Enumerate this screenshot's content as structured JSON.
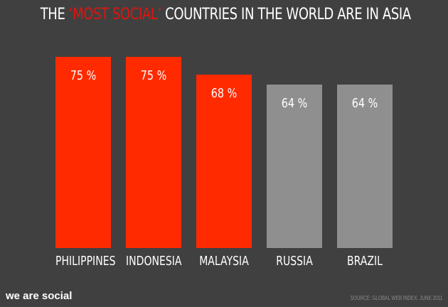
{
  "title": {
    "prefix": "THE ",
    "highlight": "‘MOST SOCIAL’",
    "suffix": " COUNTRIES IN THE WORLD ARE IN ASIA"
  },
  "colors": {
    "background": "#404040",
    "highlight": "#ff2a00",
    "neutral": "#8f8f8f",
    "text": "#ffffff"
  },
  "bars": [
    {
      "label": "PHILIPPINES",
      "value_label": "75 %",
      "color": "#ff2a00"
    },
    {
      "label": "INDONESIA",
      "value_label": "75 %",
      "color": "#ff2a00"
    },
    {
      "label": "MALAYSIA",
      "value_label": "68 %",
      "color": "#ff2a00"
    },
    {
      "label": "RUSSIA",
      "value_label": "64 %",
      "color": "#8f8f8f"
    },
    {
      "label": "BRAZIL",
      "value_label": "64 %",
      "color": "#8f8f8f"
    }
  ],
  "footer": {
    "brand": "we are social",
    "source": "SOURCE: GLOBAL WEB INDEX, JUNE 2011"
  },
  "chart_data": {
    "type": "bar",
    "title": "THE ‘MOST SOCIAL’ COUNTRIES IN THE WORLD ARE IN ASIA",
    "categories": [
      "PHILIPPINES",
      "INDONESIA",
      "MALAYSIA",
      "RUSSIA",
      "BRAZIL"
    ],
    "values": [
      75,
      75,
      68,
      64,
      64
    ],
    "unit": "%",
    "xlabel": "",
    "ylabel": "",
    "grid": false,
    "legend": null,
    "annotations": [
      "SOURCE: GLOBAL WEB INDEX, JUNE 2011"
    ]
  }
}
